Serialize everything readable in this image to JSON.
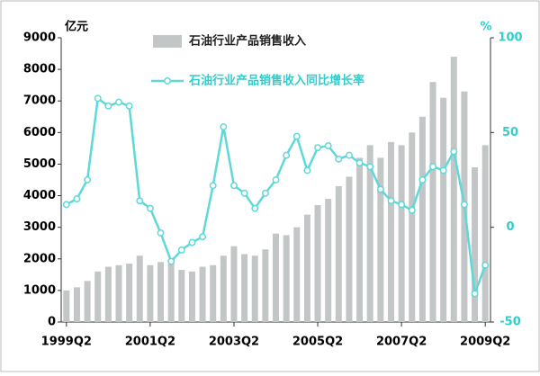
{
  "chart_data": {
    "type": "bar-line",
    "y_unit_label": "亿元",
    "y2_unit_label": "%",
    "categories": [
      "1999Q2",
      null,
      null,
      null,
      null,
      null,
      null,
      null,
      "2001Q2",
      null,
      null,
      null,
      null,
      null,
      null,
      null,
      "2003Q2",
      null,
      null,
      null,
      null,
      null,
      null,
      null,
      "2005Q2",
      null,
      null,
      null,
      null,
      null,
      null,
      null,
      "2007Q2",
      null,
      null,
      null,
      null,
      null,
      null,
      null,
      "2009Q2"
    ],
    "series": [
      {
        "name": "石油行业产品销售收入",
        "type": "bar",
        "color": "#c2c6c6",
        "values": [
          1000,
          1100,
          1300,
          1600,
          1750,
          1800,
          1850,
          2100,
          1800,
          1900,
          1850,
          1650,
          1600,
          1750,
          1800,
          2100,
          2400,
          2150,
          2100,
          2300,
          2800,
          2750,
          3000,
          3400,
          3700,
          3900,
          4300,
          4600,
          5200,
          5600,
          5200,
          5700,
          5600,
          6000,
          6500,
          7600,
          7100,
          8400,
          7300,
          4900,
          5600
        ]
      },
      {
        "name": "石油行业产品销售收入同比增长率",
        "type": "line",
        "axis": "y2",
        "color": "#5fd8d8",
        "values": [
          12,
          15,
          25,
          68,
          64,
          66,
          64,
          14,
          10,
          -3,
          -18,
          -12,
          -8,
          -5,
          22,
          53,
          22,
          18,
          10,
          18,
          25,
          38,
          48,
          30,
          42,
          43,
          36,
          38,
          34,
          32,
          20,
          14,
          12,
          9,
          25,
          32,
          30,
          40,
          12,
          -35,
          -20
        ]
      }
    ],
    "ylim": [
      0,
      9000
    ],
    "yticks": [
      0,
      1000,
      2000,
      3000,
      4000,
      5000,
      6000,
      7000,
      8000,
      9000
    ],
    "y2lim": [
      -50,
      100
    ],
    "y2ticks": [
      -50,
      0,
      50,
      100
    ]
  }
}
